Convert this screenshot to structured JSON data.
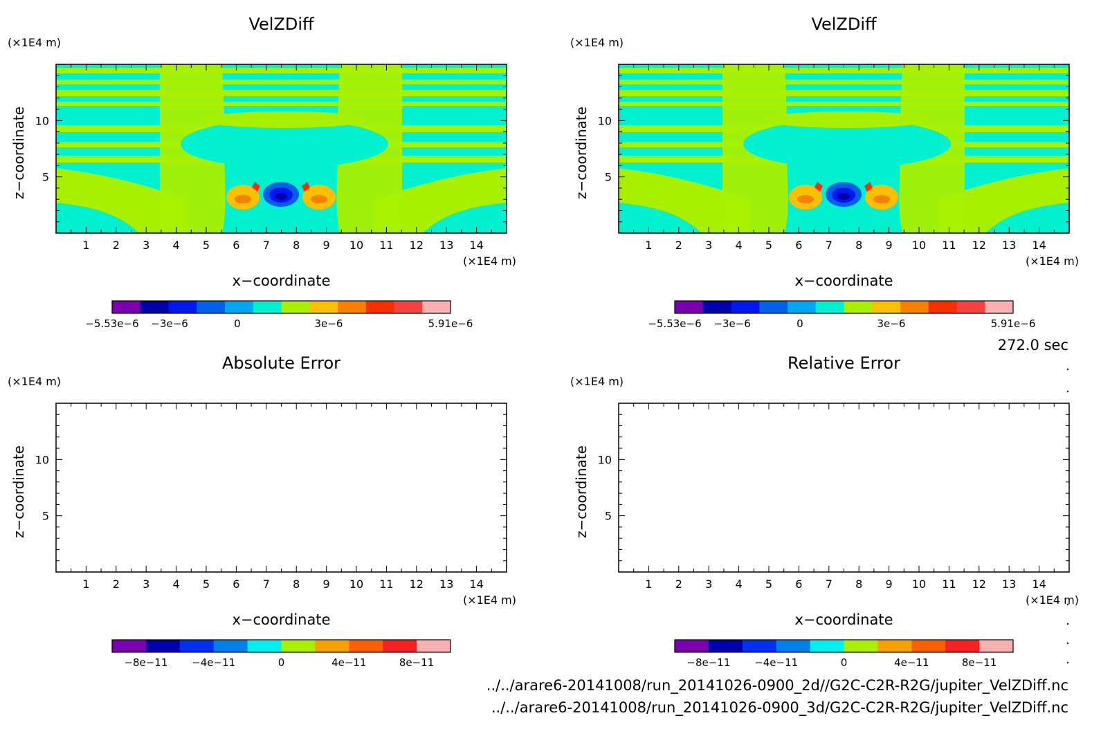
{
  "time_label": "272.0 sec",
  "files": [
    "../../arare6-20141008/run_20141026-0900_2d//G2C-C2R-R2G/jupiter_VelZDiff.nc",
    "../../arare6-20141008/run_20141026-0900_3d/G2C-C2R-R2G/jupiter_VelZDiff.nc"
  ],
  "colors": {
    "vel_levels": [
      "#7a00b0",
      "#0000a8",
      "#0018f0",
      "#0060e8",
      "#00a8f0",
      "#00f0d0",
      "#a8f000",
      "#f8c000",
      "#f88000",
      "#f83000",
      "#f84040",
      "#f8b0b0"
    ],
    "err_levels": [
      "#7a00b0",
      "#0000a8",
      "#0030f0",
      "#0080e8",
      "#00f0f0",
      "#a8f000",
      "#f8a000",
      "#f86000",
      "#f82020",
      "#f8b0b0"
    ]
  },
  "chart_data": [
    {
      "type": "heatmap",
      "title": "VelZDiff",
      "xlabel": "x−coordinate",
      "ylabel": "z−coordinate",
      "x_unit": "(×1E4 m)",
      "y_unit": "(×1E4 m)",
      "xlim": [
        0,
        15
      ],
      "ylim": [
        0,
        15
      ],
      "x_ticks": [
        "1",
        "2",
        "3",
        "4",
        "5",
        "6",
        "7",
        "8",
        "9",
        "10",
        "11",
        "12",
        "13",
        "14"
      ],
      "y_ticks": [
        "5",
        "10"
      ],
      "colorbar_labels": [
        "−5.53e−6",
        "−3e−6",
        "0",
        "3e−6",
        "5.91e−6"
      ],
      "grid": false
    },
    {
      "type": "heatmap",
      "title": "VelZDiff",
      "xlabel": "x−coordinate",
      "ylabel": "z−coordinate",
      "x_unit": "(×1E4 m)",
      "y_unit": "(×1E4 m)",
      "xlim": [
        0,
        15
      ],
      "ylim": [
        0,
        15
      ],
      "x_ticks": [
        "1",
        "2",
        "3",
        "4",
        "5",
        "6",
        "7",
        "8",
        "9",
        "10",
        "11",
        "12",
        "13",
        "14"
      ],
      "y_ticks": [
        "5",
        "10"
      ],
      "colorbar_labels": [
        "−5.53e−6",
        "−3e−6",
        "0",
        "3e−6",
        "5.91e−6"
      ],
      "grid": false
    },
    {
      "type": "heatmap",
      "title": "Absolute Error",
      "xlabel": "x−coordinate",
      "ylabel": "z−coordinate",
      "x_unit": "(×1E4 m)",
      "y_unit": "(×1E4 m)",
      "xlim": [
        0,
        15
      ],
      "ylim": [
        0,
        15
      ],
      "x_ticks": [
        "1",
        "2",
        "3",
        "4",
        "5",
        "6",
        "7",
        "8",
        "9",
        "10",
        "11",
        "12",
        "13",
        "14"
      ],
      "y_ticks": [
        "5",
        "10"
      ],
      "colorbar_labels": [
        "−8e−11",
        "−4e−11",
        "0",
        "4e−11",
        "8e−11"
      ],
      "grid": false
    },
    {
      "type": "heatmap",
      "title": "Relative Error",
      "xlabel": "x−coordinate",
      "ylabel": "z−coordinate",
      "x_unit": "(×1E4 m)",
      "y_unit": "(×1E4 m)",
      "xlim": [
        0,
        15
      ],
      "ylim": [
        0,
        15
      ],
      "x_ticks": [
        "1",
        "2",
        "3",
        "4",
        "5",
        "6",
        "7",
        "8",
        "9",
        "10",
        "11",
        "12",
        "13",
        "14"
      ],
      "y_ticks": [
        "5",
        "10"
      ],
      "colorbar_labels": [
        "−8e−11",
        "−4e−11",
        "0",
        "4e−11",
        "8e−11"
      ],
      "grid": false
    }
  ]
}
